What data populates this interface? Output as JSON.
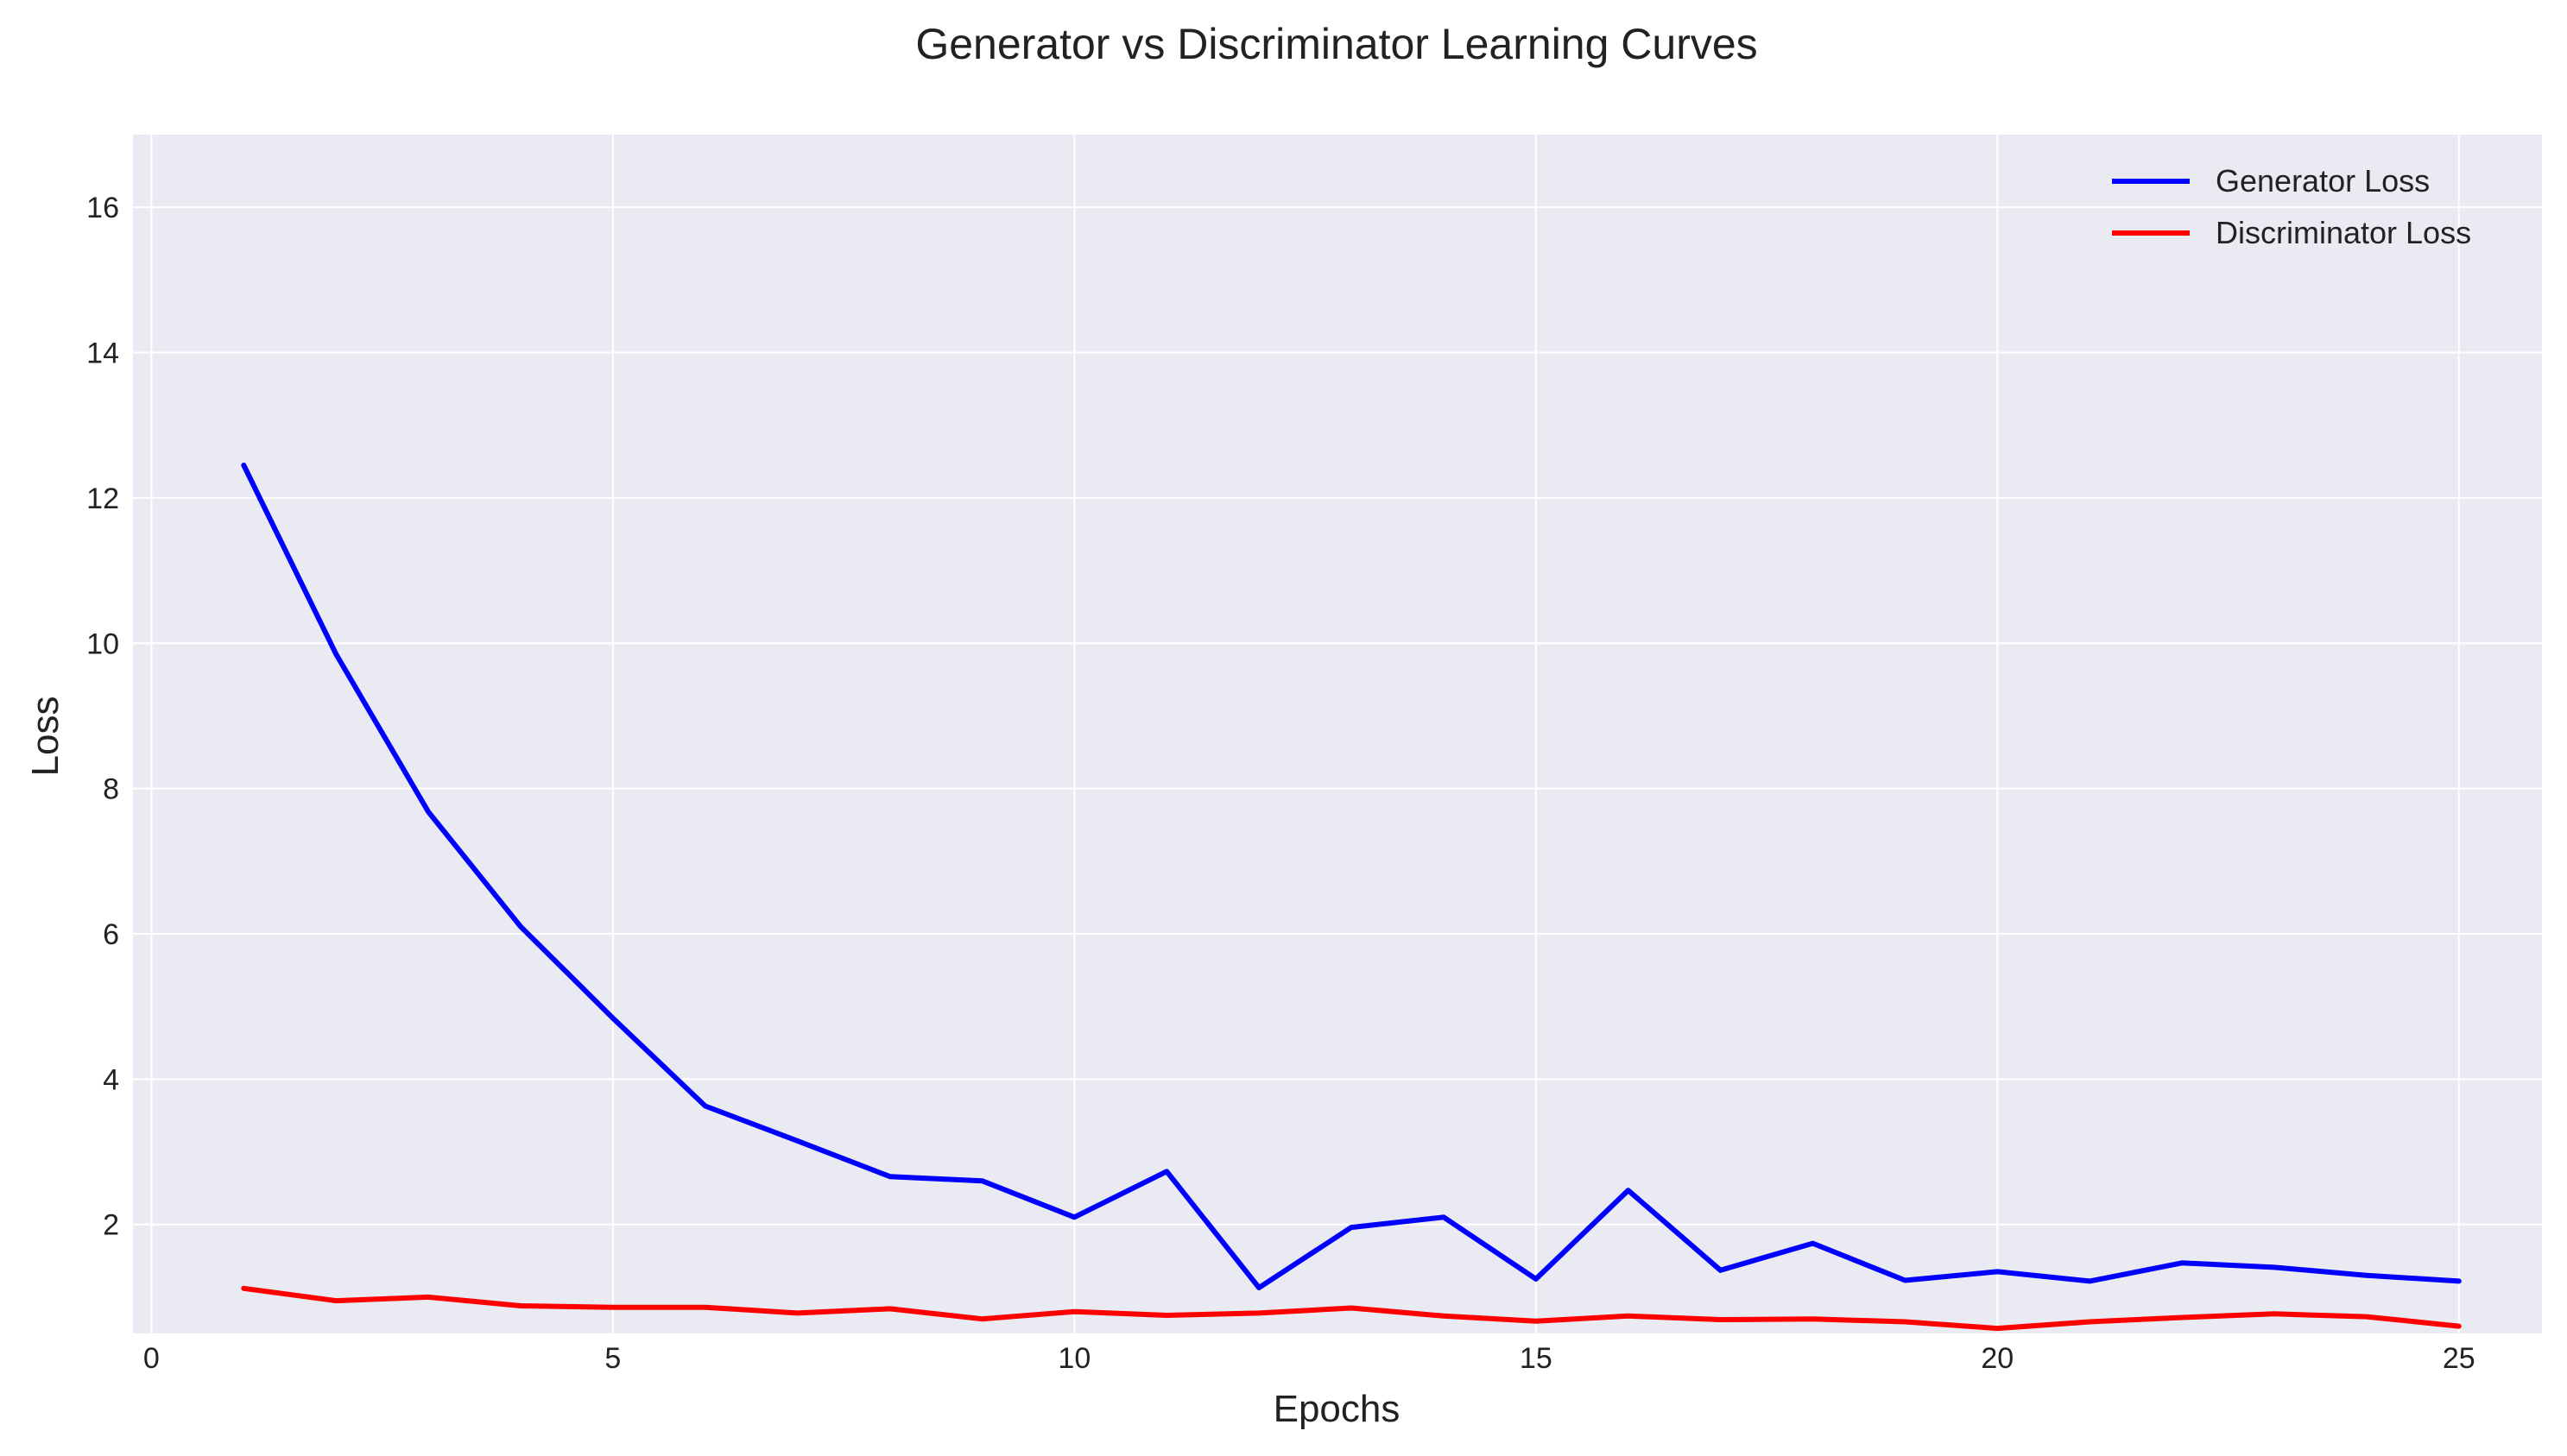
{
  "chart_data": {
    "type": "line",
    "title": "Generator vs Discriminator Learning Curves",
    "xlabel": "Epochs",
    "ylabel": "Loss",
    "xlim": [
      -0.2,
      25.9
    ],
    "ylim": [
      0.5,
      17
    ],
    "xticks": [
      "0",
      "5",
      "10",
      "15",
      "20",
      "25"
    ],
    "yticks": [
      "2",
      "4",
      "6",
      "8",
      "10",
      "12",
      "14",
      "16"
    ],
    "grid": true,
    "legend_position": "top-right",
    "x": [
      1,
      2,
      3,
      4,
      5,
      6,
      7,
      8,
      9,
      10,
      11,
      12,
      13,
      14,
      15,
      16,
      17,
      18,
      19,
      20,
      21,
      22,
      23,
      24,
      25
    ],
    "series": [
      {
        "name": "Generator Loss",
        "color": "#0000ff",
        "values": [
          12.45,
          9.85,
          7.68,
          6.1,
          4.84,
          3.63,
          3.15,
          2.66,
          2.6,
          2.1,
          2.73,
          1.13,
          1.96,
          2.1,
          1.25,
          2.47,
          1.37,
          1.74,
          1.23,
          1.35,
          1.22,
          1.47,
          1.41,
          1.3,
          1.22
        ]
      },
      {
        "name": "Discriminator Loss",
        "color": "#ff0000",
        "values": [
          1.12,
          0.95,
          1.0,
          0.88,
          0.86,
          0.86,
          0.78,
          0.84,
          0.7,
          0.8,
          0.75,
          0.78,
          0.85,
          0.74,
          0.67,
          0.74,
          0.69,
          0.7,
          0.66,
          0.57,
          0.66,
          0.72,
          0.77,
          0.73,
          0.6
        ]
      }
    ]
  }
}
